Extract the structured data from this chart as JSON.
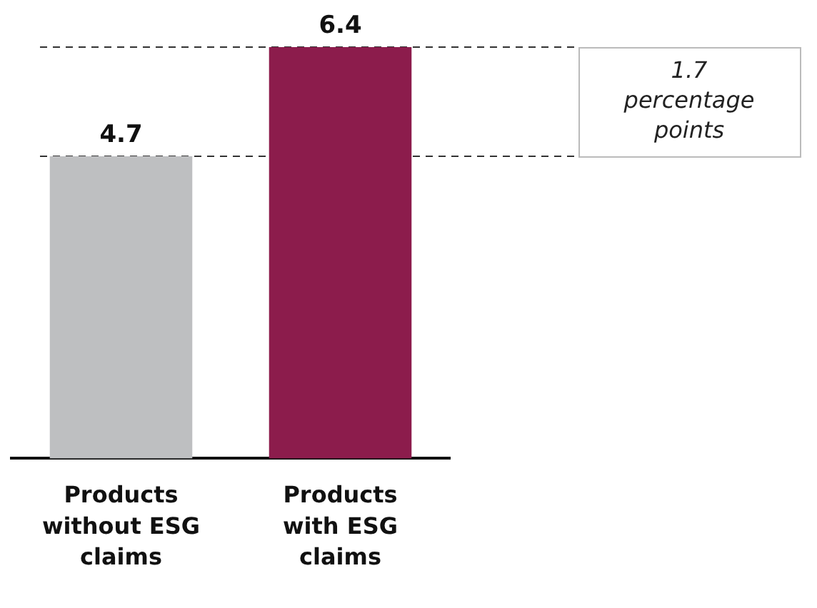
{
  "chart_data": {
    "type": "bar",
    "categories": [
      "Products without ESG claims",
      "Products with ESG claims"
    ],
    "values": [
      4.7,
      6.4
    ],
    "colors": [
      "#bebfc1",
      "#8c1c4c"
    ],
    "ylim": [
      0,
      6.4
    ],
    "data_labels": true,
    "legend": false,
    "grid": false,
    "tick_labels": "x",
    "ref_lines": [
      {
        "axis": "y",
        "value": 6.4,
        "color": "#333333",
        "line_style": "dashed"
      },
      {
        "axis": "y",
        "value": 4.7,
        "color": "#333333",
        "line_style": "dashed"
      }
    ],
    "annotations": [
      "1.7 percentage points"
    ]
  }
}
